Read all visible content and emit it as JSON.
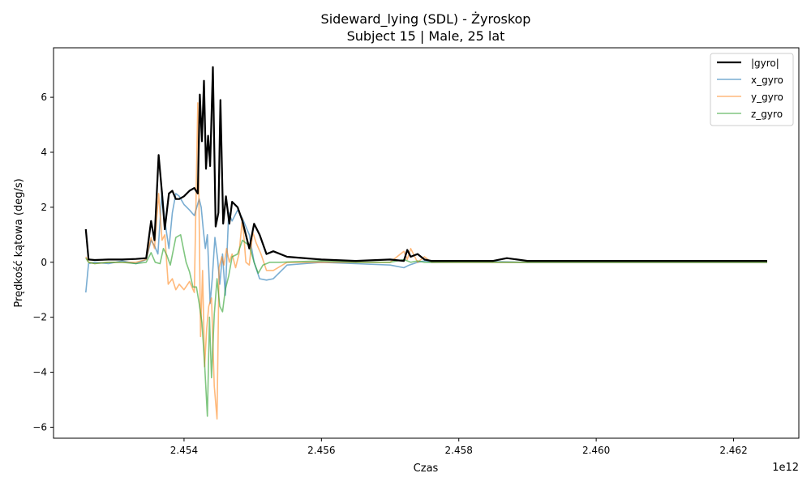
{
  "chart_data": {
    "type": "line",
    "title": "Sideward_lying (SDL) - Żyroskop",
    "subtitle": "Subject 15 | Male, 25 lat",
    "xlabel": "Czas",
    "ylabel": "Prędkość kątowa (deg/s)",
    "x_offset_label": "1e12",
    "xlim": [
      2.4521,
      2.46295
    ],
    "ylim": [
      -6.4,
      7.8
    ],
    "x_ticks": [
      2.454,
      2.456,
      2.458,
      2.46,
      2.462
    ],
    "x_tick_labels": [
      "2.454",
      "2.456",
      "2.458",
      "2.460",
      "2.462"
    ],
    "y_ticks": [
      -6,
      -4,
      -2,
      0,
      2,
      4,
      6
    ],
    "y_tick_labels": [
      "−6",
      "−4",
      "−2",
      "0",
      "2",
      "4",
      "6"
    ],
    "grid": false,
    "legend_position": "top-right",
    "series": [
      {
        "name": "x_gyro",
        "color": "#1f77b4",
        "opacity": 0.6,
        "width": 1.6,
        "x": [
          2.45257,
          2.45261,
          2.4527,
          2.4529,
          2.4531,
          2.4533,
          2.45345,
          2.45352,
          2.45357,
          2.45362,
          2.45368,
          2.45372,
          2.45378,
          2.45383,
          2.45388,
          2.45393,
          2.454,
          2.45408,
          2.45415,
          2.45422,
          2.45425,
          2.45428,
          2.45431,
          2.45434,
          2.45438,
          2.45441,
          2.45445,
          2.45449,
          2.45452,
          2.45456,
          2.4546,
          2.45465,
          2.4547,
          2.45478,
          2.45485,
          2.45495,
          2.45502,
          2.4551,
          2.4552,
          2.4553,
          2.4555,
          2.456,
          2.4565,
          2.457,
          2.4572,
          2.45728,
          2.4574,
          2.4575,
          2.4576,
          2.458,
          2.4585,
          2.459,
          2.46,
          2.461,
          2.462,
          2.46249
        ],
        "y": [
          -1.1,
          -0.05,
          0.0,
          -0.05,
          0.05,
          -0.05,
          0.1,
          0.8,
          0.6,
          0.3,
          2.6,
          1.5,
          0.5,
          1.8,
          2.5,
          2.4,
          2.1,
          1.9,
          1.7,
          2.3,
          2.0,
          1.2,
          0.5,
          1.0,
          -1.5,
          -0.6,
          0.9,
          0.1,
          -0.8,
          0.3,
          -1.2,
          1.8,
          1.5,
          1.9,
          1.6,
          1.0,
          0.0,
          -0.6,
          -0.65,
          -0.6,
          -0.1,
          0.0,
          -0.05,
          -0.1,
          -0.2,
          -0.1,
          0.0,
          0.05,
          0.0,
          0.02,
          0.02,
          0.0,
          0.0,
          0.0,
          0.0,
          0.0
        ]
      },
      {
        "name": "y_gyro",
        "color": "#ff7f0e",
        "opacity": 0.55,
        "width": 1.6,
        "x": [
          2.45257,
          2.45261,
          2.4527,
          2.4529,
          2.4531,
          2.4533,
          2.45345,
          2.45352,
          2.45357,
          2.45363,
          2.45368,
          2.45372,
          2.45377,
          2.45383,
          2.45388,
          2.45393,
          2.454,
          2.45408,
          2.45415,
          2.4542,
          2.45424,
          2.45427,
          2.4543,
          2.45433,
          2.45436,
          2.4544,
          2.45444,
          2.45448,
          2.45451,
          2.45455,
          2.45458,
          2.45462,
          2.45466,
          2.4547,
          2.45475,
          2.4548,
          2.45485,
          2.4549,
          2.45495,
          2.455,
          2.45505,
          2.45512,
          2.4552,
          2.4553,
          2.4555,
          2.456,
          2.4565,
          2.457,
          2.4572,
          2.45725,
          2.4573,
          2.4574,
          2.4575,
          2.4576,
          2.458,
          2.4585,
          2.459,
          2.46,
          2.461,
          2.462,
          2.46249
        ],
        "y": [
          0.2,
          0.0,
          -0.05,
          0.0,
          0.0,
          0.0,
          0.1,
          0.9,
          0.5,
          2.5,
          0.8,
          1.0,
          -0.8,
          -0.6,
          -1.0,
          -0.8,
          -1.0,
          -0.7,
          -1.1,
          5.8,
          -2.7,
          -0.3,
          -3.8,
          -2.4,
          -1.6,
          -1.3,
          -4.5,
          -5.7,
          -0.2,
          0.2,
          -0.1,
          0.5,
          0.0,
          0.3,
          -0.2,
          0.3,
          1.6,
          0.0,
          -0.1,
          1.1,
          0.7,
          0.3,
          -0.3,
          -0.3,
          0.0,
          0.0,
          0.0,
          0.0,
          0.4,
          0.1,
          0.5,
          0.0,
          0.2,
          0.0,
          0.0,
          0.0,
          0.0,
          0.0,
          0.0,
          0.0,
          0.0
        ]
      },
      {
        "name": "z_gyro",
        "color": "#2ca02c",
        "opacity": 0.6,
        "width": 1.6,
        "x": [
          2.45257,
          2.45261,
          2.4527,
          2.4529,
          2.4531,
          2.4533,
          2.45345,
          2.45352,
          2.45358,
          2.45365,
          2.4537,
          2.45375,
          2.4538,
          2.45388,
          2.45395,
          2.45403,
          2.45408,
          2.45413,
          2.45418,
          2.45422,
          2.45426,
          2.4543,
          2.45434,
          2.45437,
          2.4544,
          2.45444,
          2.45448,
          2.45452,
          2.45456,
          2.4546,
          2.45465,
          2.4547,
          2.45478,
          2.45485,
          2.45495,
          2.45502,
          2.45508,
          2.45515,
          2.45525,
          2.4554,
          2.456,
          2.4565,
          2.457,
          2.4572,
          2.4573,
          2.4574,
          2.4575,
          2.4576,
          2.458,
          2.4585,
          2.459,
          2.46,
          2.461,
          2.462,
          2.46249
        ],
        "y": [
          0.15,
          0.0,
          -0.05,
          0.0,
          0.0,
          -0.05,
          0.0,
          0.35,
          0.0,
          -0.05,
          0.5,
          0.25,
          -0.1,
          0.9,
          1.0,
          0.0,
          -0.35,
          -0.9,
          -0.9,
          -1.5,
          -2.2,
          -3.7,
          -5.6,
          -2.0,
          -4.2,
          -1.9,
          -0.6,
          -1.6,
          -1.8,
          -1.0,
          -0.5,
          0.2,
          0.3,
          0.8,
          0.6,
          0.0,
          -0.4,
          -0.1,
          0.0,
          0.0,
          0.05,
          0.0,
          0.0,
          0.1,
          0.0,
          0.05,
          0.0,
          0.0,
          0.0,
          0.0,
          0.0,
          0.0,
          0.0,
          0.0,
          0.0
        ]
      },
      {
        "name": "|gyro|",
        "color": "#000000",
        "opacity": 1,
        "width": 2.2,
        "x": [
          2.45257,
          2.45261,
          2.4527,
          2.4529,
          2.4531,
          2.4533,
          2.45345,
          2.45352,
          2.45357,
          2.45363,
          2.45368,
          2.45372,
          2.45378,
          2.45383,
          2.45388,
          2.45393,
          2.454,
          2.45408,
          2.45415,
          2.4542,
          2.45423,
          2.45426,
          2.45429,
          2.45432,
          2.45435,
          2.45438,
          2.45442,
          2.45446,
          2.4545,
          2.45453,
          2.45457,
          2.45461,
          2.45466,
          2.4547,
          2.45478,
          2.45485,
          2.45495,
          2.45502,
          2.4551,
          2.4552,
          2.4553,
          2.4555,
          2.456,
          2.4565,
          2.457,
          2.4572,
          2.45725,
          2.4573,
          2.4574,
          2.4575,
          2.4576,
          2.458,
          2.4585,
          2.4587,
          2.459,
          2.46,
          2.461,
          2.462,
          2.46249
        ],
        "y": [
          1.2,
          0.1,
          0.08,
          0.1,
          0.1,
          0.12,
          0.15,
          1.5,
          0.8,
          3.9,
          2.5,
          1.2,
          2.5,
          2.6,
          2.3,
          2.3,
          2.4,
          2.6,
          2.7,
          2.5,
          6.1,
          4.4,
          6.6,
          3.4,
          4.6,
          3.5,
          7.1,
          1.3,
          1.8,
          5.9,
          1.4,
          2.4,
          1.4,
          2.2,
          2.0,
          1.5,
          0.5,
          1.4,
          1.0,
          0.3,
          0.4,
          0.2,
          0.1,
          0.05,
          0.1,
          0.05,
          0.45,
          0.2,
          0.3,
          0.1,
          0.05,
          0.05,
          0.05,
          0.15,
          0.05,
          0.05,
          0.05,
          0.05,
          0.05
        ]
      }
    ]
  }
}
